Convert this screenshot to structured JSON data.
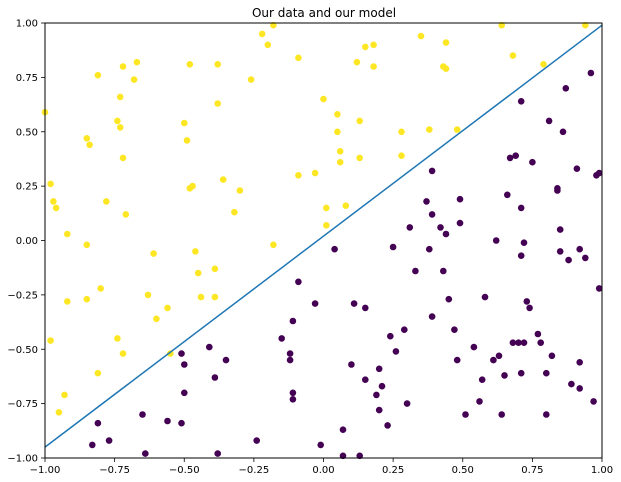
{
  "chart_data": {
    "type": "scatter",
    "title": "Our data and our model",
    "xlabel": "",
    "ylabel": "",
    "xlim": [
      -1.0,
      1.0
    ],
    "ylim": [
      -1.0,
      1.0
    ],
    "xticks": [
      -1.0,
      -0.75,
      -0.5,
      -0.25,
      0.0,
      0.25,
      0.5,
      0.75,
      1.0
    ],
    "xtick_labels": [
      "−1.00",
      "−0.75",
      "−0.50",
      "−0.25",
      "0.00",
      "0.25",
      "0.50",
      "0.75",
      "1.00"
    ],
    "yticks": [
      -1.0,
      -0.75,
      -0.5,
      -0.25,
      0.0,
      0.25,
      0.5,
      0.75,
      1.0
    ],
    "ytick_labels": [
      "−1.00",
      "−0.75",
      "−0.50",
      "−0.25",
      "0.00",
      "0.25",
      "0.50",
      "0.75",
      "1.00"
    ],
    "grid": false,
    "legend": "none",
    "line": {
      "x": [
        -1.0,
        1.0
      ],
      "y": [
        -0.95,
        0.99
      ],
      "color": "#1f77b4"
    },
    "series": [
      {
        "color": "#fde725",
        "points": [
          [
            -1.0,
            0.59
          ],
          [
            -0.98,
            0.26
          ],
          [
            -0.97,
            0.18
          ],
          [
            -0.96,
            0.15
          ],
          [
            -0.98,
            -0.46
          ],
          [
            -0.95,
            -0.79
          ],
          [
            -0.93,
            -0.71
          ],
          [
            -0.92,
            0.03
          ],
          [
            -0.92,
            -0.28
          ],
          [
            -0.85,
            0.47
          ],
          [
            -0.84,
            0.44
          ],
          [
            -0.85,
            -0.02
          ],
          [
            -0.85,
            -0.27
          ],
          [
            -0.81,
            0.76
          ],
          [
            -0.8,
            -0.22
          ],
          [
            -0.78,
            0.18
          ],
          [
            -0.81,
            -0.61
          ],
          [
            -0.74,
            0.55
          ],
          [
            -0.73,
            0.52
          ],
          [
            -0.73,
            0.66
          ],
          [
            -0.72,
            0.8
          ],
          [
            -0.72,
            0.38
          ],
          [
            -0.71,
            0.12
          ],
          [
            -0.74,
            -0.45
          ],
          [
            -0.72,
            -0.52
          ],
          [
            -0.68,
            0.74
          ],
          [
            -0.67,
            0.82
          ],
          [
            -0.63,
            -0.25
          ],
          [
            -0.61,
            -0.06
          ],
          [
            -0.6,
            -0.36
          ],
          [
            -0.56,
            -0.31
          ],
          [
            -0.55,
            -0.52
          ],
          [
            -0.5,
            0.54
          ],
          [
            -0.49,
            0.46
          ],
          [
            -0.48,
            0.81
          ],
          [
            -0.48,
            0.24
          ],
          [
            -0.47,
            0.25
          ],
          [
            -0.46,
            -0.05
          ],
          [
            -0.45,
            -0.15
          ],
          [
            -0.44,
            -0.26
          ],
          [
            -0.39,
            -0.13
          ],
          [
            -0.39,
            -0.26
          ],
          [
            -0.38,
            0.81
          ],
          [
            -0.38,
            0.63
          ],
          [
            -0.36,
            0.28
          ],
          [
            -0.32,
            0.13
          ],
          [
            -0.3,
            0.23
          ],
          [
            -0.26,
            0.74
          ],
          [
            -0.22,
            0.95
          ],
          [
            -0.2,
            0.9
          ],
          [
            -0.18,
            0.99
          ],
          [
            -0.18,
            -0.02
          ],
          [
            -0.09,
            0.84
          ],
          [
            -0.09,
            0.3
          ],
          [
            -0.03,
            0.31
          ],
          [
            0.0,
            0.65
          ],
          [
            0.01,
            0.07
          ],
          [
            0.01,
            0.15
          ],
          [
            0.05,
            0.58
          ],
          [
            0.05,
            0.5
          ],
          [
            0.06,
            0.41
          ],
          [
            0.06,
            0.36
          ],
          [
            0.08,
            0.16
          ],
          [
            0.12,
            0.82
          ],
          [
            0.13,
            0.55
          ],
          [
            0.13,
            0.38
          ],
          [
            0.15,
            0.89
          ],
          [
            0.18,
            0.8
          ],
          [
            0.18,
            0.9
          ],
          [
            0.28,
            0.5
          ],
          [
            0.28,
            0.39
          ],
          [
            0.35,
            0.94
          ],
          [
            0.38,
            0.51
          ],
          [
            0.43,
            0.8
          ],
          [
            0.44,
            0.79
          ],
          [
            0.44,
            0.91
          ],
          [
            0.48,
            0.51
          ],
          [
            0.64,
            0.99
          ],
          [
            0.68,
            0.85
          ],
          [
            0.79,
            0.81
          ],
          [
            0.94,
            0.99
          ]
        ]
      },
      {
        "color": "#440154",
        "points": [
          [
            -0.83,
            -0.94
          ],
          [
            -0.81,
            -0.84
          ],
          [
            -0.77,
            -0.92
          ],
          [
            -0.65,
            -0.8
          ],
          [
            -0.64,
            -0.98
          ],
          [
            -0.56,
            -0.83
          ],
          [
            -0.51,
            -0.84
          ],
          [
            -0.51,
            -0.52
          ],
          [
            -0.5,
            -0.57
          ],
          [
            -0.5,
            -0.7
          ],
          [
            -0.41,
            -0.49
          ],
          [
            -0.39,
            -0.63
          ],
          [
            -0.38,
            -0.98
          ],
          [
            -0.35,
            -0.55
          ],
          [
            -0.24,
            -0.92
          ],
          [
            -0.15,
            -0.45
          ],
          [
            -0.12,
            -0.52
          ],
          [
            -0.12,
            -0.55
          ],
          [
            -0.11,
            -0.37
          ],
          [
            -0.11,
            -0.7
          ],
          [
            -0.11,
            -0.73
          ],
          [
            -0.09,
            -0.19
          ],
          [
            -0.03,
            -0.29
          ],
          [
            -0.01,
            -0.94
          ],
          [
            0.04,
            -0.04
          ],
          [
            0.07,
            -0.87
          ],
          [
            0.07,
            -0.99
          ],
          [
            0.1,
            -0.57
          ],
          [
            0.11,
            -0.29
          ],
          [
            0.13,
            -0.99
          ],
          [
            0.15,
            -0.31
          ],
          [
            0.15,
            -0.64
          ],
          [
            0.19,
            -0.71
          ],
          [
            0.2,
            -0.78
          ],
          [
            0.2,
            -0.59
          ],
          [
            0.21,
            -0.67
          ],
          [
            0.23,
            -0.85
          ],
          [
            0.24,
            -0.44
          ],
          [
            0.25,
            -0.03
          ],
          [
            0.26,
            -0.51
          ],
          [
            0.29,
            -0.41
          ],
          [
            0.3,
            -0.75
          ],
          [
            0.31,
            0.06
          ],
          [
            0.33,
            -0.14
          ],
          [
            0.37,
            0.18
          ],
          [
            0.38,
            -0.04
          ],
          [
            0.39,
            -0.35
          ],
          [
            0.39,
            0.12
          ],
          [
            0.39,
            0.32
          ],
          [
            0.42,
            0.06
          ],
          [
            0.43,
            -0.14
          ],
          [
            0.44,
            0.03
          ],
          [
            0.45,
            -0.27
          ],
          [
            0.47,
            -0.41
          ],
          [
            0.48,
            -0.55
          ],
          [
            0.49,
            0.19
          ],
          [
            0.49,
            0.08
          ],
          [
            0.51,
            -0.8
          ],
          [
            0.54,
            -0.49
          ],
          [
            0.56,
            -0.74
          ],
          [
            0.57,
            -0.64
          ],
          [
            0.58,
            -0.26
          ],
          [
            0.61,
            -0.55
          ],
          [
            0.62,
            0.0
          ],
          [
            0.63,
            -0.53
          ],
          [
            0.64,
            -0.8
          ],
          [
            0.65,
            -0.62
          ],
          [
            0.66,
            0.21
          ],
          [
            0.67,
            0.38
          ],
          [
            0.68,
            -0.47
          ],
          [
            0.7,
            -0.47
          ],
          [
            0.69,
            0.39
          ],
          [
            0.71,
            -0.61
          ],
          [
            0.71,
            -0.07
          ],
          [
            0.71,
            0.15
          ],
          [
            0.71,
            0.64
          ],
          [
            0.72,
            -0.01
          ],
          [
            0.72,
            -0.47
          ],
          [
            0.73,
            -0.28
          ],
          [
            0.74,
            -0.31
          ],
          [
            0.75,
            0.36
          ],
          [
            0.77,
            -0.43
          ],
          [
            0.78,
            -0.47
          ],
          [
            0.8,
            -0.8
          ],
          [
            0.8,
            -0.61
          ],
          [
            0.81,
            0.55
          ],
          [
            0.82,
            -0.53
          ],
          [
            0.84,
            0.24
          ],
          [
            0.84,
            0.23
          ],
          [
            0.85,
            -0.05
          ],
          [
            0.85,
            0.05
          ],
          [
            0.86,
            0.5
          ],
          [
            0.87,
            0.7
          ],
          [
            0.88,
            -0.09
          ],
          [
            0.89,
            -0.66
          ],
          [
            0.91,
            0.33
          ],
          [
            0.92,
            -0.04
          ],
          [
            0.92,
            -0.56
          ],
          [
            0.92,
            -0.68
          ],
          [
            0.94,
            -0.08
          ],
          [
            0.96,
            0.77
          ],
          [
            0.97,
            -0.74
          ],
          [
            0.98,
            0.3
          ],
          [
            0.99,
            -0.22
          ],
          [
            0.99,
            0.31
          ]
        ]
      }
    ]
  }
}
